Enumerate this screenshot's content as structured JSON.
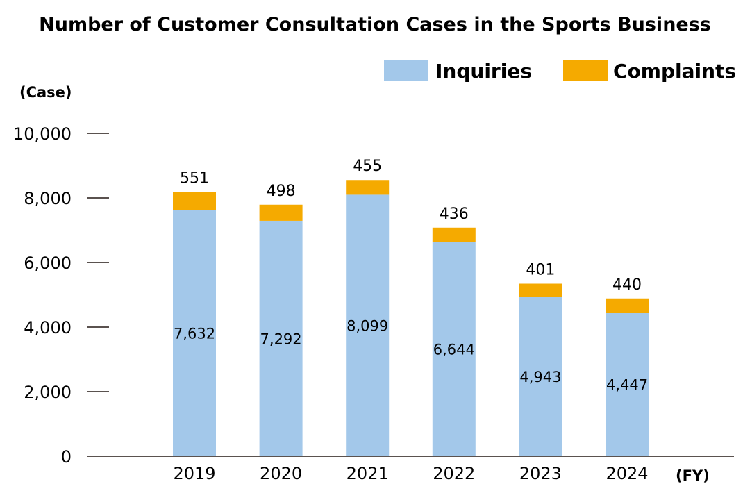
{
  "chart_data": {
    "type": "bar",
    "stacked": true,
    "title": "Number of Customer Consultation Cases in the Sports Business",
    "ylabel": "(Case)",
    "xlabel": "(FY)",
    "ylim": [
      0,
      10000
    ],
    "yticks": [
      "0",
      "2,000",
      "4,000",
      "6,000",
      "8,000",
      "10,000"
    ],
    "ytick_values": [
      0,
      2000,
      4000,
      6000,
      8000,
      10000
    ],
    "categories": [
      "2019",
      "2020",
      "2021",
      "2022",
      "2023",
      "2024"
    ],
    "series": [
      {
        "name": "Inquiries",
        "color": "#a3c8ea",
        "values": [
          7632,
          7292,
          8099,
          6644,
          4943,
          4447
        ],
        "labels": [
          "7,632",
          "7,292",
          "8,099",
          "6,644",
          "4,943",
          "4,447"
        ]
      },
      {
        "name": "Complaints",
        "color": "#f5aa00",
        "values": [
          551,
          498,
          455,
          436,
          401,
          440
        ],
        "labels": [
          "551",
          "498",
          "455",
          "436",
          "401",
          "440"
        ]
      }
    ],
    "legend_position": "top-right"
  }
}
